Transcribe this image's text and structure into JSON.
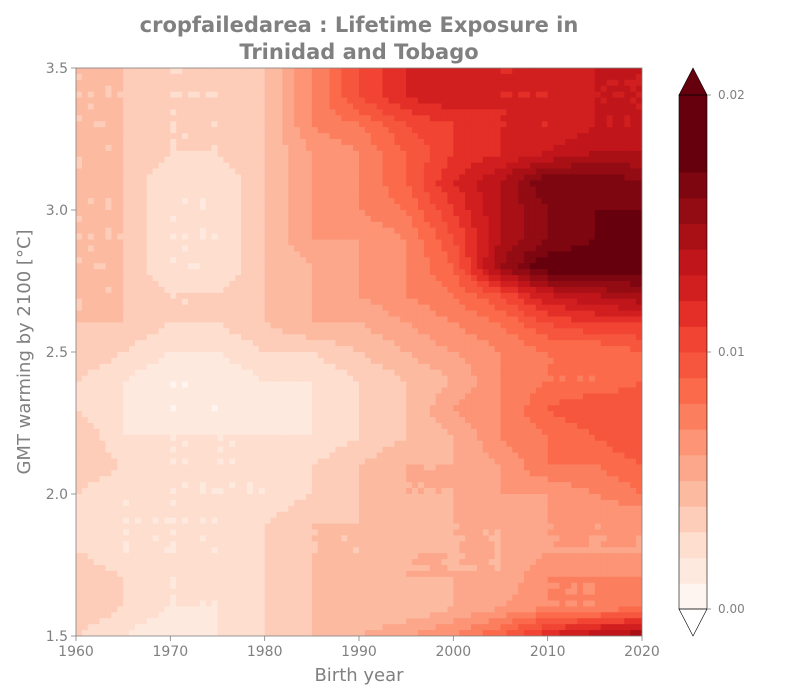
{
  "chart_data": {
    "type": "heatmap",
    "title_lines": [
      "cropfailedarea : Lifetime Exposure in",
      "Trinidad and Tobago"
    ],
    "xlabel": "Birth year",
    "ylabel": "GMT warming by 2100 [°C]",
    "xlim": [
      1960,
      2020
    ],
    "ylim": [
      1.5,
      3.5
    ],
    "x_ticks": [
      "1960",
      "1970",
      "1980",
      "1990",
      "2000",
      "2010",
      "2020"
    ],
    "y_ticks": [
      "1.5",
      "2.0",
      "2.5",
      "3.0",
      "3.5"
    ],
    "x": [
      1960,
      1965,
      1970,
      1975,
      1980,
      1985,
      1990,
      1995,
      2000,
      2005,
      2010,
      2015,
      2020
    ],
    "y": [
      1.5,
      1.6,
      1.7,
      1.8,
      1.9,
      2.0,
      2.1,
      2.2,
      2.3,
      2.4,
      2.5,
      2.6,
      2.7,
      2.8,
      2.9,
      3.0,
      3.1,
      3.2,
      3.3,
      3.4,
      3.5
    ],
    "z": [
      [
        0.003,
        0.002,
        0.001,
        0.002,
        0.003,
        0.004,
        0.005,
        0.006,
        0.007,
        0.009,
        0.012,
        0.014,
        0.015
      ],
      [
        0.004,
        0.003,
        0.002,
        0.002,
        0.003,
        0.004,
        0.004,
        0.004,
        0.005,
        0.006,
        0.007,
        0.007,
        0.008
      ],
      [
        0.004,
        0.003,
        0.002,
        0.002,
        0.003,
        0.004,
        0.005,
        0.005,
        0.005,
        0.005,
        0.007,
        0.007,
        0.007
      ],
      [
        0.003,
        0.002,
        0.002,
        0.002,
        0.003,
        0.004,
        0.004,
        0.005,
        0.005,
        0.005,
        0.006,
        0.006,
        0.006
      ],
      [
        0.002,
        0.002,
        0.002,
        0.002,
        0.003,
        0.004,
        0.004,
        0.004,
        0.005,
        0.005,
        0.006,
        0.006,
        0.006
      ],
      [
        0.003,
        0.002,
        0.002,
        0.002,
        0.002,
        0.003,
        0.004,
        0.005,
        0.005,
        0.006,
        0.006,
        0.007,
        0.008
      ],
      [
        0.004,
        0.003,
        0.002,
        0.002,
        0.002,
        0.003,
        0.004,
        0.005,
        0.005,
        0.006,
        0.008,
        0.008,
        0.009
      ],
      [
        0.004,
        0.002,
        0.002,
        0.002,
        0.002,
        0.002,
        0.003,
        0.004,
        0.005,
        0.007,
        0.008,
        0.009,
        0.01
      ],
      [
        0.003,
        0.002,
        0.001,
        0.001,
        0.001,
        0.002,
        0.003,
        0.004,
        0.006,
        0.007,
        0.009,
        0.01,
        0.01
      ],
      [
        0.003,
        0.002,
        0.001,
        0.001,
        0.002,
        0.002,
        0.003,
        0.004,
        0.005,
        0.007,
        0.008,
        0.008,
        0.009
      ],
      [
        0.004,
        0.003,
        0.002,
        0.002,
        0.003,
        0.003,
        0.004,
        0.005,
        0.006,
        0.007,
        0.008,
        0.008,
        0.009
      ],
      [
        0.004,
        0.004,
        0.003,
        0.003,
        0.004,
        0.005,
        0.005,
        0.006,
        0.007,
        0.008,
        0.01,
        0.011,
        0.011
      ],
      [
        0.004,
        0.004,
        0.003,
        0.003,
        0.004,
        0.005,
        0.006,
        0.007,
        0.008,
        0.01,
        0.013,
        0.014,
        0.015
      ],
      [
        0.004,
        0.004,
        0.002,
        0.002,
        0.004,
        0.005,
        0.006,
        0.007,
        0.009,
        0.015,
        0.018,
        0.018,
        0.018
      ],
      [
        0.004,
        0.004,
        0.002,
        0.002,
        0.004,
        0.006,
        0.006,
        0.007,
        0.01,
        0.014,
        0.016,
        0.017,
        0.019
      ],
      [
        0.004,
        0.004,
        0.002,
        0.002,
        0.004,
        0.006,
        0.007,
        0.008,
        0.011,
        0.014,
        0.016,
        0.017,
        0.017
      ],
      [
        0.004,
        0.004,
        0.002,
        0.002,
        0.004,
        0.006,
        0.007,
        0.009,
        0.012,
        0.014,
        0.017,
        0.017,
        0.016
      ],
      [
        0.004,
        0.004,
        0.003,
        0.003,
        0.004,
        0.006,
        0.007,
        0.009,
        0.011,
        0.012,
        0.013,
        0.014,
        0.014
      ],
      [
        0.004,
        0.004,
        0.003,
        0.003,
        0.004,
        0.007,
        0.008,
        0.01,
        0.011,
        0.012,
        0.012,
        0.013,
        0.013
      ],
      [
        0.004,
        0.004,
        0.003,
        0.003,
        0.004,
        0.007,
        0.01,
        0.012,
        0.013,
        0.012,
        0.012,
        0.013,
        0.013
      ],
      [
        0.004,
        0.004,
        0.003,
        0.003,
        0.004,
        0.007,
        0.01,
        0.012,
        0.013,
        0.012,
        0.012,
        0.013,
        0.013
      ]
    ],
    "colorbar": {
      "levels": [
        0.0,
        0.001,
        0.002,
        0.003,
        0.004,
        0.005,
        0.006,
        0.007,
        0.008,
        0.009,
        0.01,
        0.011,
        0.012,
        0.013,
        0.014,
        0.015,
        0.016,
        0.017,
        0.018,
        0.019,
        0.02
      ],
      "colors": [
        "#fff5f0",
        "#fee9df",
        "#fedecf",
        "#fdcdb9",
        "#fcbba1",
        "#fca78b",
        "#fc9475",
        "#fb7f5f",
        "#fb6b4b",
        "#f6563d",
        "#f14432",
        "#e32f27",
        "#d11e1f",
        "#c0161b",
        "#a91016",
        "#930b13",
        "#7e0611",
        "#67000d",
        "#67000d",
        "#67000d"
      ],
      "over_color": "#67000d",
      "under_color": "#ffffff",
      "extend": "both",
      "tick_values": [
        0.0,
        0.01,
        0.02
      ],
      "tick_labels": [
        "0.00",
        "0.01",
        "0.02"
      ]
    }
  }
}
